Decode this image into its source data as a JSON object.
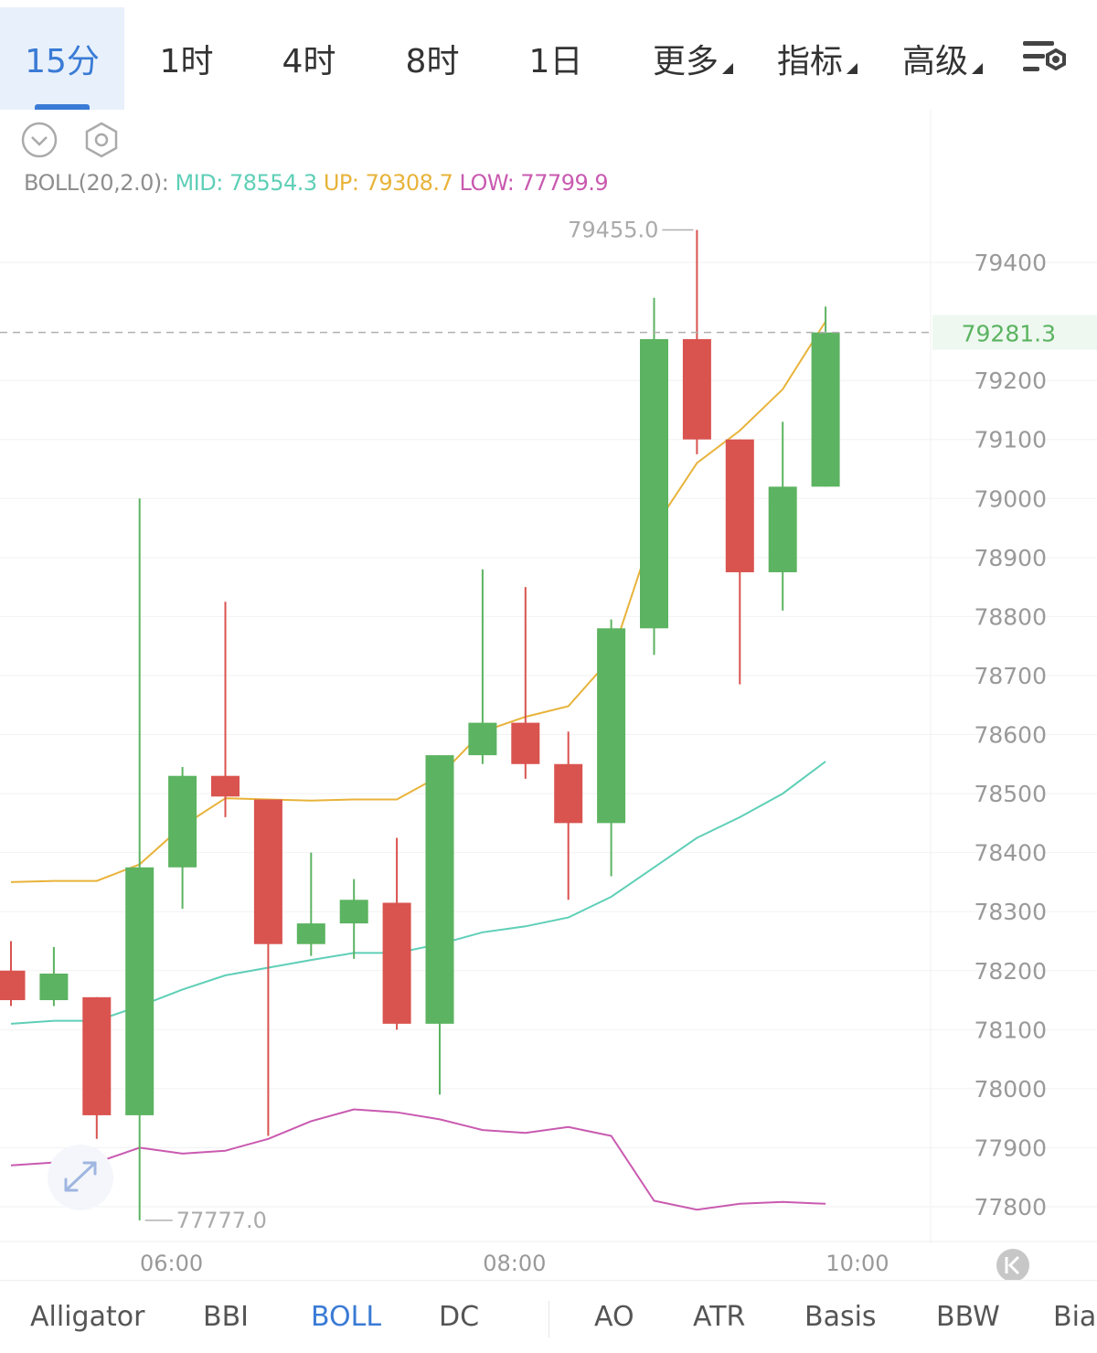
{
  "timeframes": [
    {
      "label": "15分",
      "active": true
    },
    {
      "label": "1时"
    },
    {
      "label": "4时"
    },
    {
      "label": "8时"
    },
    {
      "label": "1日"
    }
  ],
  "menus": [
    {
      "label": "更多"
    },
    {
      "label": "指标"
    },
    {
      "label": "高级"
    }
  ],
  "boll": {
    "label": "BOLL(20,2.0):",
    "mid": "MID: 78554.3",
    "up": "UP: 79308.7",
    "low": "LOW: 77799.9"
  },
  "colors": {
    "up_candle": "#5cb361",
    "down_candle": "#d9534f",
    "mid_line": "#5fcfb7",
    "upper_line": "#e8b33a",
    "lower_line": "#c95ab0",
    "accent": "#3a7bd5",
    "last_price": "#5cb361"
  },
  "chart_data": {
    "type": "candlestick",
    "y_axis": {
      "ticks": [
        79400,
        79200,
        79100,
        79000,
        78900,
        78800,
        78700,
        78600,
        78500,
        78400,
        78300,
        78200,
        78100,
        78000,
        77900,
        77800
      ],
      "range": [
        77680,
        79560
      ]
    },
    "x_axis": {
      "ticks": [
        {
          "label": "06:00",
          "index": 4
        },
        {
          "label": "08:00",
          "index": 12
        },
        {
          "label": "10:00",
          "index": 20
        }
      ]
    },
    "last_price": {
      "value": 79281.3,
      "label": "79281.3"
    },
    "max_label": {
      "value": 79455.0,
      "label": "79455.0",
      "index": 16
    },
    "min_label": {
      "value": 77777.0,
      "label": "77777.0",
      "index": 3
    },
    "candles": [
      {
        "o": 78200,
        "h": 78250,
        "l": 78140,
        "c": 78150
      },
      {
        "o": 78150,
        "h": 78240,
        "l": 78140,
        "c": 78195
      },
      {
        "o": 78155,
        "h": 78155,
        "l": 77915,
        "c": 77955
      },
      {
        "o": 77955,
        "h": 79000,
        "l": 77777,
        "c": 78375
      },
      {
        "o": 78375,
        "h": 78545,
        "l": 78305,
        "c": 78530
      },
      {
        "o": 78530,
        "h": 78825,
        "l": 78460,
        "c": 78495
      },
      {
        "o": 78490,
        "h": 78490,
        "l": 77920,
        "c": 78245
      },
      {
        "o": 78245,
        "h": 78400,
        "l": 78225,
        "c": 78280
      },
      {
        "o": 78280,
        "h": 78355,
        "l": 78220,
        "c": 78320
      },
      {
        "o": 78315,
        "h": 78425,
        "l": 78100,
        "c": 78110
      },
      {
        "o": 78110,
        "h": 78565,
        "l": 77990,
        "c": 78565
      },
      {
        "o": 78565,
        "h": 78880,
        "l": 78550,
        "c": 78620
      },
      {
        "o": 78620,
        "h": 78850,
        "l": 78525,
        "c": 78550
      },
      {
        "o": 78550,
        "h": 78605,
        "l": 78320,
        "c": 78450
      },
      {
        "o": 78450,
        "h": 78795,
        "l": 78360,
        "c": 78780
      },
      {
        "o": 78780,
        "h": 79340,
        "l": 78735,
        "c": 79270
      },
      {
        "o": 79270,
        "h": 79455,
        "l": 79075,
        "c": 79100
      },
      {
        "o": 79100,
        "h": 79100,
        "l": 78685,
        "c": 78875
      },
      {
        "o": 78875,
        "h": 79130,
        "l": 78810,
        "c": 79020
      },
      {
        "o": 79020,
        "h": 79325,
        "l": 79020,
        "c": 79281.3
      }
    ],
    "series": [
      {
        "key": "upper",
        "values": [
          78350,
          78352,
          78352,
          78380,
          78445,
          78492,
          78490,
          78488,
          78490,
          78490,
          78530,
          78605,
          78630,
          78648,
          78730,
          78950,
          79060,
          79115,
          79185,
          79300
        ]
      },
      {
        "key": "mid",
        "values": [
          78110,
          78115,
          78115,
          78140,
          78168,
          78192,
          78205,
          78218,
          78230,
          78230,
          78245,
          78265,
          78275,
          78290,
          78325,
          78375,
          78425,
          78460,
          78500,
          78554.3
        ]
      },
      {
        "key": "lower",
        "values": [
          77870,
          77875,
          77875,
          77900,
          77890,
          77895,
          77915,
          77945,
          77965,
          77960,
          77948,
          77930,
          77925,
          77935,
          77920,
          77810,
          77795,
          77805,
          77808,
          77805
        ]
      }
    ]
  },
  "indicators": {
    "main": [
      {
        "label": "Alligator"
      },
      {
        "label": "BBI"
      },
      {
        "label": "BOLL",
        "active": true
      },
      {
        "label": "DC"
      }
    ],
    "sub": [
      {
        "label": "AO"
      },
      {
        "label": "ATR"
      },
      {
        "label": "Basis"
      },
      {
        "label": "BBW"
      },
      {
        "label": "Bias"
      }
    ]
  }
}
